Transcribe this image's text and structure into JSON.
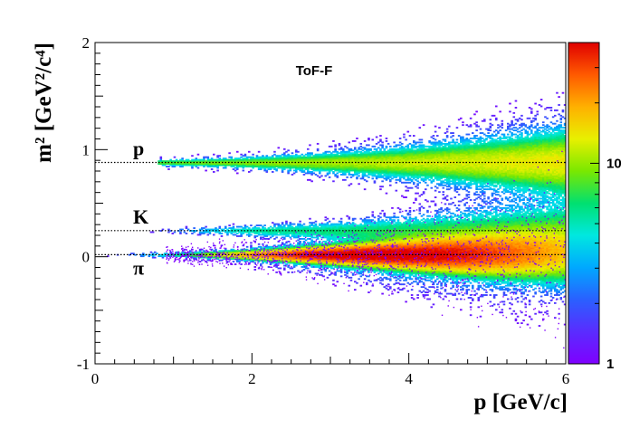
{
  "chart_data": {
    "type": "heatmap",
    "title": "ToF-F",
    "xlabel": "p [GeV/c]",
    "ylabel": "m² [GeV²/c⁴]",
    "xlim": [
      0,
      6
    ],
    "ylim": [
      -1,
      2
    ],
    "x_ticks": [
      "0",
      "2",
      "4",
      "6"
    ],
    "y_ticks": [
      "-1",
      "0",
      "1",
      "2"
    ],
    "z_scale": "log",
    "z_range": [
      1,
      40
    ],
    "z_ticks": [
      "1",
      "10"
    ],
    "palette": [
      "#7f00ff",
      "#5a2cff",
      "#2a60ff",
      "#00a8ff",
      "#00e8e0",
      "#00e070",
      "#7ae800",
      "#e8f000",
      "#ffb000",
      "#ff5a00",
      "#e00000"
    ],
    "bands": [
      {
        "name": "π",
        "m2": 0.0195,
        "p_start": 0.15,
        "peak_density": 1.0
      },
      {
        "name": "K",
        "m2": 0.244,
        "p_start": 0.6,
        "peak_density": 0.12
      },
      {
        "name": "p",
        "m2": 0.88,
        "p_start": 0.8,
        "peak_density": 0.25
      }
    ],
    "reference_lines": [
      {
        "label": "p",
        "m2": 0.88
      },
      {
        "label": "K",
        "m2": 0.244
      },
      {
        "label": "π",
        "m2": 0.0195
      }
    ],
    "grid": false,
    "legend": "none"
  }
}
